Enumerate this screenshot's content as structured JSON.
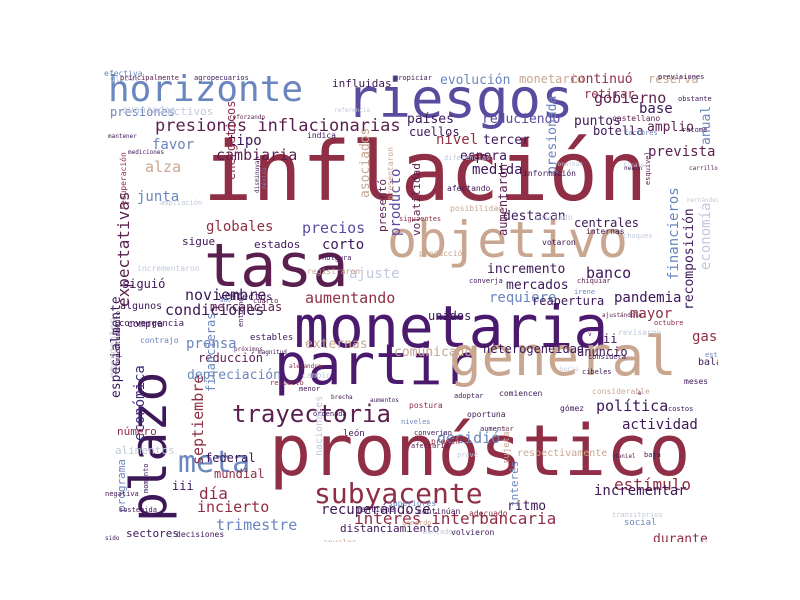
{
  "words": [
    {
      "text": "inflación",
      "color": "#8f2e45"
    },
    {
      "text": "pronóstico",
      "color": "#8f2e45"
    },
    {
      "text": "monetaria",
      "color": "#4b1a6e"
    },
    {
      "text": "partir",
      "color": "#4b1a6e"
    },
    {
      "text": "general",
      "color": "#c9a690"
    },
    {
      "text": "riesgos",
      "color": "#5b4b9e"
    },
    {
      "text": "tasa",
      "color": "#5a1f4f"
    },
    {
      "text": "objetivo",
      "color": "#c9a690"
    },
    {
      "text": "plazo",
      "color": "#3d1758"
    },
    {
      "text": "horizonte",
      "color": "#6a86be"
    },
    {
      "text": "meta",
      "color": "#6a86be"
    },
    {
      "text": "subyacente",
      "color": "#8f2e45"
    },
    {
      "text": "trayectoria",
      "color": "#5a1f4f"
    },
    {
      "text": "presiones inflacionarias",
      "color": "#5a1f4f"
    },
    {
      "text": "interés interbancaria",
      "color": "#8f2e45"
    },
    {
      "text": "gobierno",
      "color": "#5a1f4f"
    },
    {
      "text": "expectativas",
      "color": "#5a1f4f"
    },
    {
      "text": "noviembre",
      "color": "#3d1758"
    },
    {
      "text": "condiciones",
      "color": "#3d1758"
    },
    {
      "text": "cambiaria",
      "color": "#5a1f4f"
    },
    {
      "text": "banco",
      "color": "#3d1758"
    },
    {
      "text": "política",
      "color": "#3d1758"
    },
    {
      "text": "estímulo",
      "color": "#8f2e45"
    },
    {
      "text": "septiembre",
      "color": "#8f2e45"
    },
    {
      "text": "económica",
      "color": "#3d2a7a"
    },
    {
      "text": "aumentando",
      "color": "#8f2e45"
    },
    {
      "text": "trimestre",
      "color": "#6a86be"
    },
    {
      "text": "actividad",
      "color": "#3d1758"
    },
    {
      "text": "decidió",
      "color": "#6a86be"
    },
    {
      "text": "prevista",
      "color": "#5a1f4f"
    },
    {
      "text": "puntos",
      "color": "#3d1758"
    },
    {
      "text": "amplio",
      "color": "#5a1f4f"
    },
    {
      "text": "nivel",
      "color": "#8f2e45"
    },
    {
      "text": "espera",
      "color": "#3d1758"
    },
    {
      "text": "tercer",
      "color": "#3d1758"
    },
    {
      "text": "medida",
      "color": "#3d1758"
    },
    {
      "text": "junta",
      "color": "#6a86be"
    },
    {
      "text": "precios",
      "color": "#5b4b9e"
    },
    {
      "text": "globales",
      "color": "#8f2e45"
    },
    {
      "text": "mercados",
      "color": "#3d1758"
    },
    {
      "text": "pandemia",
      "color": "#3d1758"
    },
    {
      "text": "comunicado",
      "color": "#c9a690"
    },
    {
      "text": "incremento",
      "color": "#3d1758"
    },
    {
      "text": "requiere",
      "color": "#6a86be"
    },
    {
      "text": "gasto",
      "color": "#8f2e45"
    },
    {
      "text": "mayor",
      "color": "#8f2e45"
    },
    {
      "text": "alza",
      "color": "#c9a690"
    },
    {
      "text": "favor",
      "color": "#6a86be"
    },
    {
      "text": "tipo",
      "color": "#3d1758"
    },
    {
      "text": "día",
      "color": "#8f2e45"
    },
    {
      "text": "incierto",
      "color": "#8f2e45"
    },
    {
      "text": "incrementar",
      "color": "#3d1758"
    },
    {
      "text": "recuperándose",
      "color": "#3d1758"
    },
    {
      "text": "ritmo",
      "color": "#3d1758"
    },
    {
      "text": "prensa",
      "color": "#6a86be"
    },
    {
      "text": "reducción",
      "color": "#5a1f4f"
    },
    {
      "text": "externas",
      "color": "#c9a690"
    },
    {
      "text": "depreciación",
      "color": "#6a86be"
    },
    {
      "text": "ajuste",
      "color": "#c0c8dc"
    },
    {
      "text": "corto",
      "color": "#3d1758"
    },
    {
      "text": "base",
      "color": "#3d1758"
    },
    {
      "text": "anual",
      "color": "#6a86be"
    },
    {
      "text": "durante",
      "color": "#8f2e45"
    },
    {
      "text": "anuncio",
      "color": "#3d1758"
    },
    {
      "text": "heterogeneidad",
      "color": "#3d1758"
    },
    {
      "text": "federal",
      "color": "#3d1758"
    },
    {
      "text": "mundial",
      "color": "#8f2e45"
    },
    {
      "text": "economía",
      "color": "#c0c8dc"
    },
    {
      "text": "financieros",
      "color": "#6a86be"
    },
    {
      "text": "recomposición",
      "color": "#3d1758"
    },
    {
      "text": "reapertura",
      "color": "#3d1758"
    },
    {
      "text": "producto",
      "color": "#5b4b9e"
    },
    {
      "text": "volatilidad",
      "color": "#5a1f4f"
    },
    {
      "text": "destacan",
      "color": "#3d1758"
    },
    {
      "text": "aumentaron",
      "color": "#5a1f4f"
    },
    {
      "text": "centrales",
      "color": "#3d1758"
    },
    {
      "text": "asociados",
      "color": "#c9a690"
    },
    {
      "text": "presentó",
      "color": "#5a1f4f"
    },
    {
      "text": "reduciendo",
      "color": "#5b4b9e"
    },
    {
      "text": "presionada",
      "color": "#6a86be"
    },
    {
      "text": "continuó",
      "color": "#8f2e45"
    },
    {
      "text": "retirar",
      "color": "#8f2e45"
    },
    {
      "text": "botella",
      "color": "#3d1758"
    },
    {
      "text": "evolución",
      "color": "#6a86be"
    },
    {
      "text": "monetario",
      "color": "#c9a690"
    },
    {
      "text": "reserva",
      "color": "#c9a690"
    },
    {
      "text": "influidas",
      "color": "#3d1758"
    },
    {
      "text": "países",
      "color": "#3d1758"
    },
    {
      "text": "cuellos",
      "color": "#3d1758"
    },
    {
      "text": "unidos",
      "color": "#3d1758"
    },
    {
      "text": "mercancías",
      "color": "#5a1f4f"
    },
    {
      "text": "efectos",
      "color": "#3d1758"
    },
    {
      "text": "estados",
      "color": "#3d1758"
    },
    {
      "text": "sigue",
      "color": "#3d1758"
    },
    {
      "text": "algunos",
      "color": "#3d1758"
    },
    {
      "text": "compra",
      "color": "#3d1758"
    },
    {
      "text": "siguió",
      "color": "#3d1758"
    },
    {
      "text": "ver",
      "color": "#3d1758"
    },
    {
      "text": "iii",
      "color": "#3d1758"
    },
    {
      "text": "ii",
      "color": "#3d1758"
    },
    {
      "text": "número",
      "color": "#8f2e45"
    },
    {
      "text": "programa",
      "color": "#6a86be"
    },
    {
      "text": "alimentos",
      "color": "#c0c8dc"
    },
    {
      "text": "sectores",
      "color": "#3d1758"
    },
    {
      "text": "emergentes",
      "color": "#c0c8dc"
    },
    {
      "text": "especialmente",
      "color": "#3d1758"
    },
    {
      "text": "financieras",
      "color": "#6a86be"
    },
    {
      "text": "energéticos",
      "color": "#8f2e45"
    },
    {
      "text": "presiones",
      "color": "#6a86be"
    },
    {
      "text": "activos",
      "color": "#c0c8dc"
    },
    {
      "text": "avanzadas",
      "color": "#c0c8dc"
    },
    {
      "text": "global",
      "color": "#c0c8dc"
    },
    {
      "text": "principalmente",
      "color": "#5a1f4f"
    },
    {
      "text": "agropecuarios",
      "color": "#3d1758"
    },
    {
      "text": "propiciar",
      "color": "#3d1758"
    },
    {
      "text": "referencia",
      "color": "#c0c8dc"
    },
    {
      "text": "reforzando",
      "color": "#5a1f4f"
    },
    {
      "text": "mantener",
      "color": "#3d1758"
    },
    {
      "text": "mediciones",
      "color": "#3d1758"
    },
    {
      "text": "ampliación",
      "color": "#c0c8dc"
    },
    {
      "text": "indica",
      "color": "#3d1758"
    },
    {
      "text": "diferencias",
      "color": "#c0c8dc"
    },
    {
      "text": "jonathan",
      "color": "#c0c8dc"
    },
    {
      "text": "heath",
      "color": "#3d1758"
    },
    {
      "text": "carrillo",
      "color": "#5a1f4f"
    },
    {
      "text": "castellano",
      "color": "#5a1f4f"
    },
    {
      "text": "información",
      "color": "#3d1758"
    },
    {
      "text": "afectando",
      "color": "#3d1758"
    },
    {
      "text": "posibilidad",
      "color": "#c9a690"
    },
    {
      "text": "presentaron",
      "color": "#c9a690"
    },
    {
      "text": "registraron",
      "color": "#c9a690"
    },
    {
      "text": "producción",
      "color": "#c9a690"
    },
    {
      "text": "holgura",
      "color": "#3d1758"
    },
    {
      "text": "votaron",
      "color": "#3d1758"
    },
    {
      "text": "choques",
      "color": "#c0c8dc"
    },
    {
      "text": "entorno",
      "color": "#3d1758"
    },
    {
      "text": "próximos",
      "color": "#5a1f4f"
    },
    {
      "text": "magnitud",
      "color": "#3d1758"
    },
    {
      "text": "convergencia",
      "color": "#3d1758"
    },
    {
      "text": "contrajo",
      "color": "#6a86be"
    },
    {
      "text": "estables",
      "color": "#3d1758"
    },
    {
      "text": "cambio",
      "color": "#c0c8dc"
    },
    {
      "text": "menor",
      "color": "#3d1758"
    },
    {
      "text": "respecto",
      "color": "#8f2e45"
    },
    {
      "text": "alejandro",
      "color": "#8f2e45"
    },
    {
      "text": "ordenada",
      "color": "#3d1758"
    },
    {
      "text": "brecha",
      "color": "#3d1758"
    },
    {
      "text": "aumentos",
      "color": "#3d1758"
    },
    {
      "text": "postura",
      "color": "#8f2e45"
    },
    {
      "text": "niveles",
      "color": "#6a86be"
    },
    {
      "text": "adoptar",
      "color": "#3d1758"
    },
    {
      "text": "oportuna",
      "color": "#3d1758"
    },
    {
      "text": "aumentar",
      "color": "#3d1758"
    },
    {
      "text": "comiencen",
      "color": "#3d1758"
    },
    {
      "text": "converjan",
      "color": "#3d1758"
    },
    {
      "text": "prevén",
      "color": "#8f2e45"
    },
    {
      "text": "afectaría",
      "color": "#5a1f4f"
    },
    {
      "text": "prevé",
      "color": "#c0c8dc"
    },
    {
      "text": "sujetas",
      "color": "#c9a690"
    },
    {
      "text": "respectivamente",
      "color": "#c9a690"
    },
    {
      "text": "interés",
      "color": "#6a86be"
    },
    {
      "text": "nacionales",
      "color": "#c0c8dc"
    },
    {
      "text": "mantiene",
      "color": "#3d1758"
    },
    {
      "text": "superiores",
      "color": "#6a86be"
    },
    {
      "text": "continúan",
      "color": "#3d1758"
    },
    {
      "text": "adecuado",
      "color": "#8f2e45"
    },
    {
      "text": "volvieron",
      "color": "#3d1758"
    },
    {
      "text": "distanciamiento",
      "color": "#3d1758"
    },
    {
      "text": "servicios",
      "color": "#c0c8dc"
    },
    {
      "text": "social",
      "color": "#6a86be"
    },
    {
      "text": "octubre",
      "color": "#8f2e45"
    },
    {
      "text": "revisaron",
      "color": "#c0c8dc"
    },
    {
      "text": "meses",
      "color": "#3d1758"
    },
    {
      "text": "balance",
      "color": "#3d1758"
    },
    {
      "text": "considera",
      "color": "#3d1758"
    },
    {
      "text": "león",
      "color": "#3d1758"
    },
    {
      "text": "marcados",
      "color": "#c0c8dc"
    },
    {
      "text": "anuales",
      "color": "#c9a690"
    },
    {
      "text": "decisiones",
      "color": "#3d1758"
    },
    {
      "text": "sostenida",
      "color": "#3d1758"
    },
    {
      "text": "negativa",
      "color": "#3d1758"
    },
    {
      "text": "sido",
      "color": "#3d1758"
    },
    {
      "text": "momento",
      "color": "#3d1758"
    },
    {
      "text": "comportamiento",
      "color": "#3d1758"
    },
    {
      "text": "recuperación",
      "color": "#8f2e45"
    },
    {
      "text": "incrementaron",
      "color": "#c0c8dc"
    },
    {
      "text": "año",
      "color": "#6a86be"
    },
    {
      "text": "méxico",
      "color": "#6a86be"
    },
    {
      "text": "disminuyan",
      "color": "#3d1758"
    },
    {
      "text": "cuarto",
      "color": "#5a1f4f"
    },
    {
      "text": "gerardo",
      "color": "#c9a690"
    },
    {
      "text": "esquivel",
      "color": "#5a1f4f"
    },
    {
      "text": "hernández",
      "color": "#c0c8dc"
    },
    {
      "text": "previsiones",
      "color": "#3d1758"
    },
    {
      "text": "obstante",
      "color": "#3d1758"
    },
    {
      "text": "retome",
      "color": "#3d1758"
    },
    {
      "text": "factores",
      "color": "#6a86be"
    },
    {
      "text": "finales",
      "color": "#c0c8dc"
    },
    {
      "text": "iniciado",
      "color": "#c0c8dc"
    },
    {
      "text": "estrechamiento",
      "color": "#6a86be"
    },
    {
      "text": "costos",
      "color": "#3d1758"
    },
    {
      "text": "baja",
      "color": "#3d1758"
    },
    {
      "text": "transitorios",
      "color": "#c0c8dc"
    },
    {
      "text": "gómez",
      "color": "#3d1758"
    },
    {
      "text": "considerable",
      "color": "#c9a690"
    },
    {
      "text": "internas",
      "color": "#3d1758"
    },
    {
      "text": "siguientes",
      "color": "#8f2e45"
    },
    {
      "text": "converja",
      "color": "#3d1758"
    },
    {
      "text": "ajustándola",
      "color": "#5a1f4f"
    },
    {
      "text": "v",
      "color": "#3d1758"
    },
    {
      "text": "e",
      "color": "#3d1758"
    },
    {
      "text": "borja",
      "color": "#c0c8dc"
    },
    {
      "text": "irene",
      "color": "#6a86be"
    },
    {
      "text": "chiquiar",
      "color": "#5a1f4f"
    },
    {
      "text": "daniel",
      "color": "#5a1f4f"
    },
    {
      "text": "cibeles",
      "color": "#3d1758"
    },
    {
      "text": "efectiva",
      "color": "#6a86be"
    }
  ]
}
